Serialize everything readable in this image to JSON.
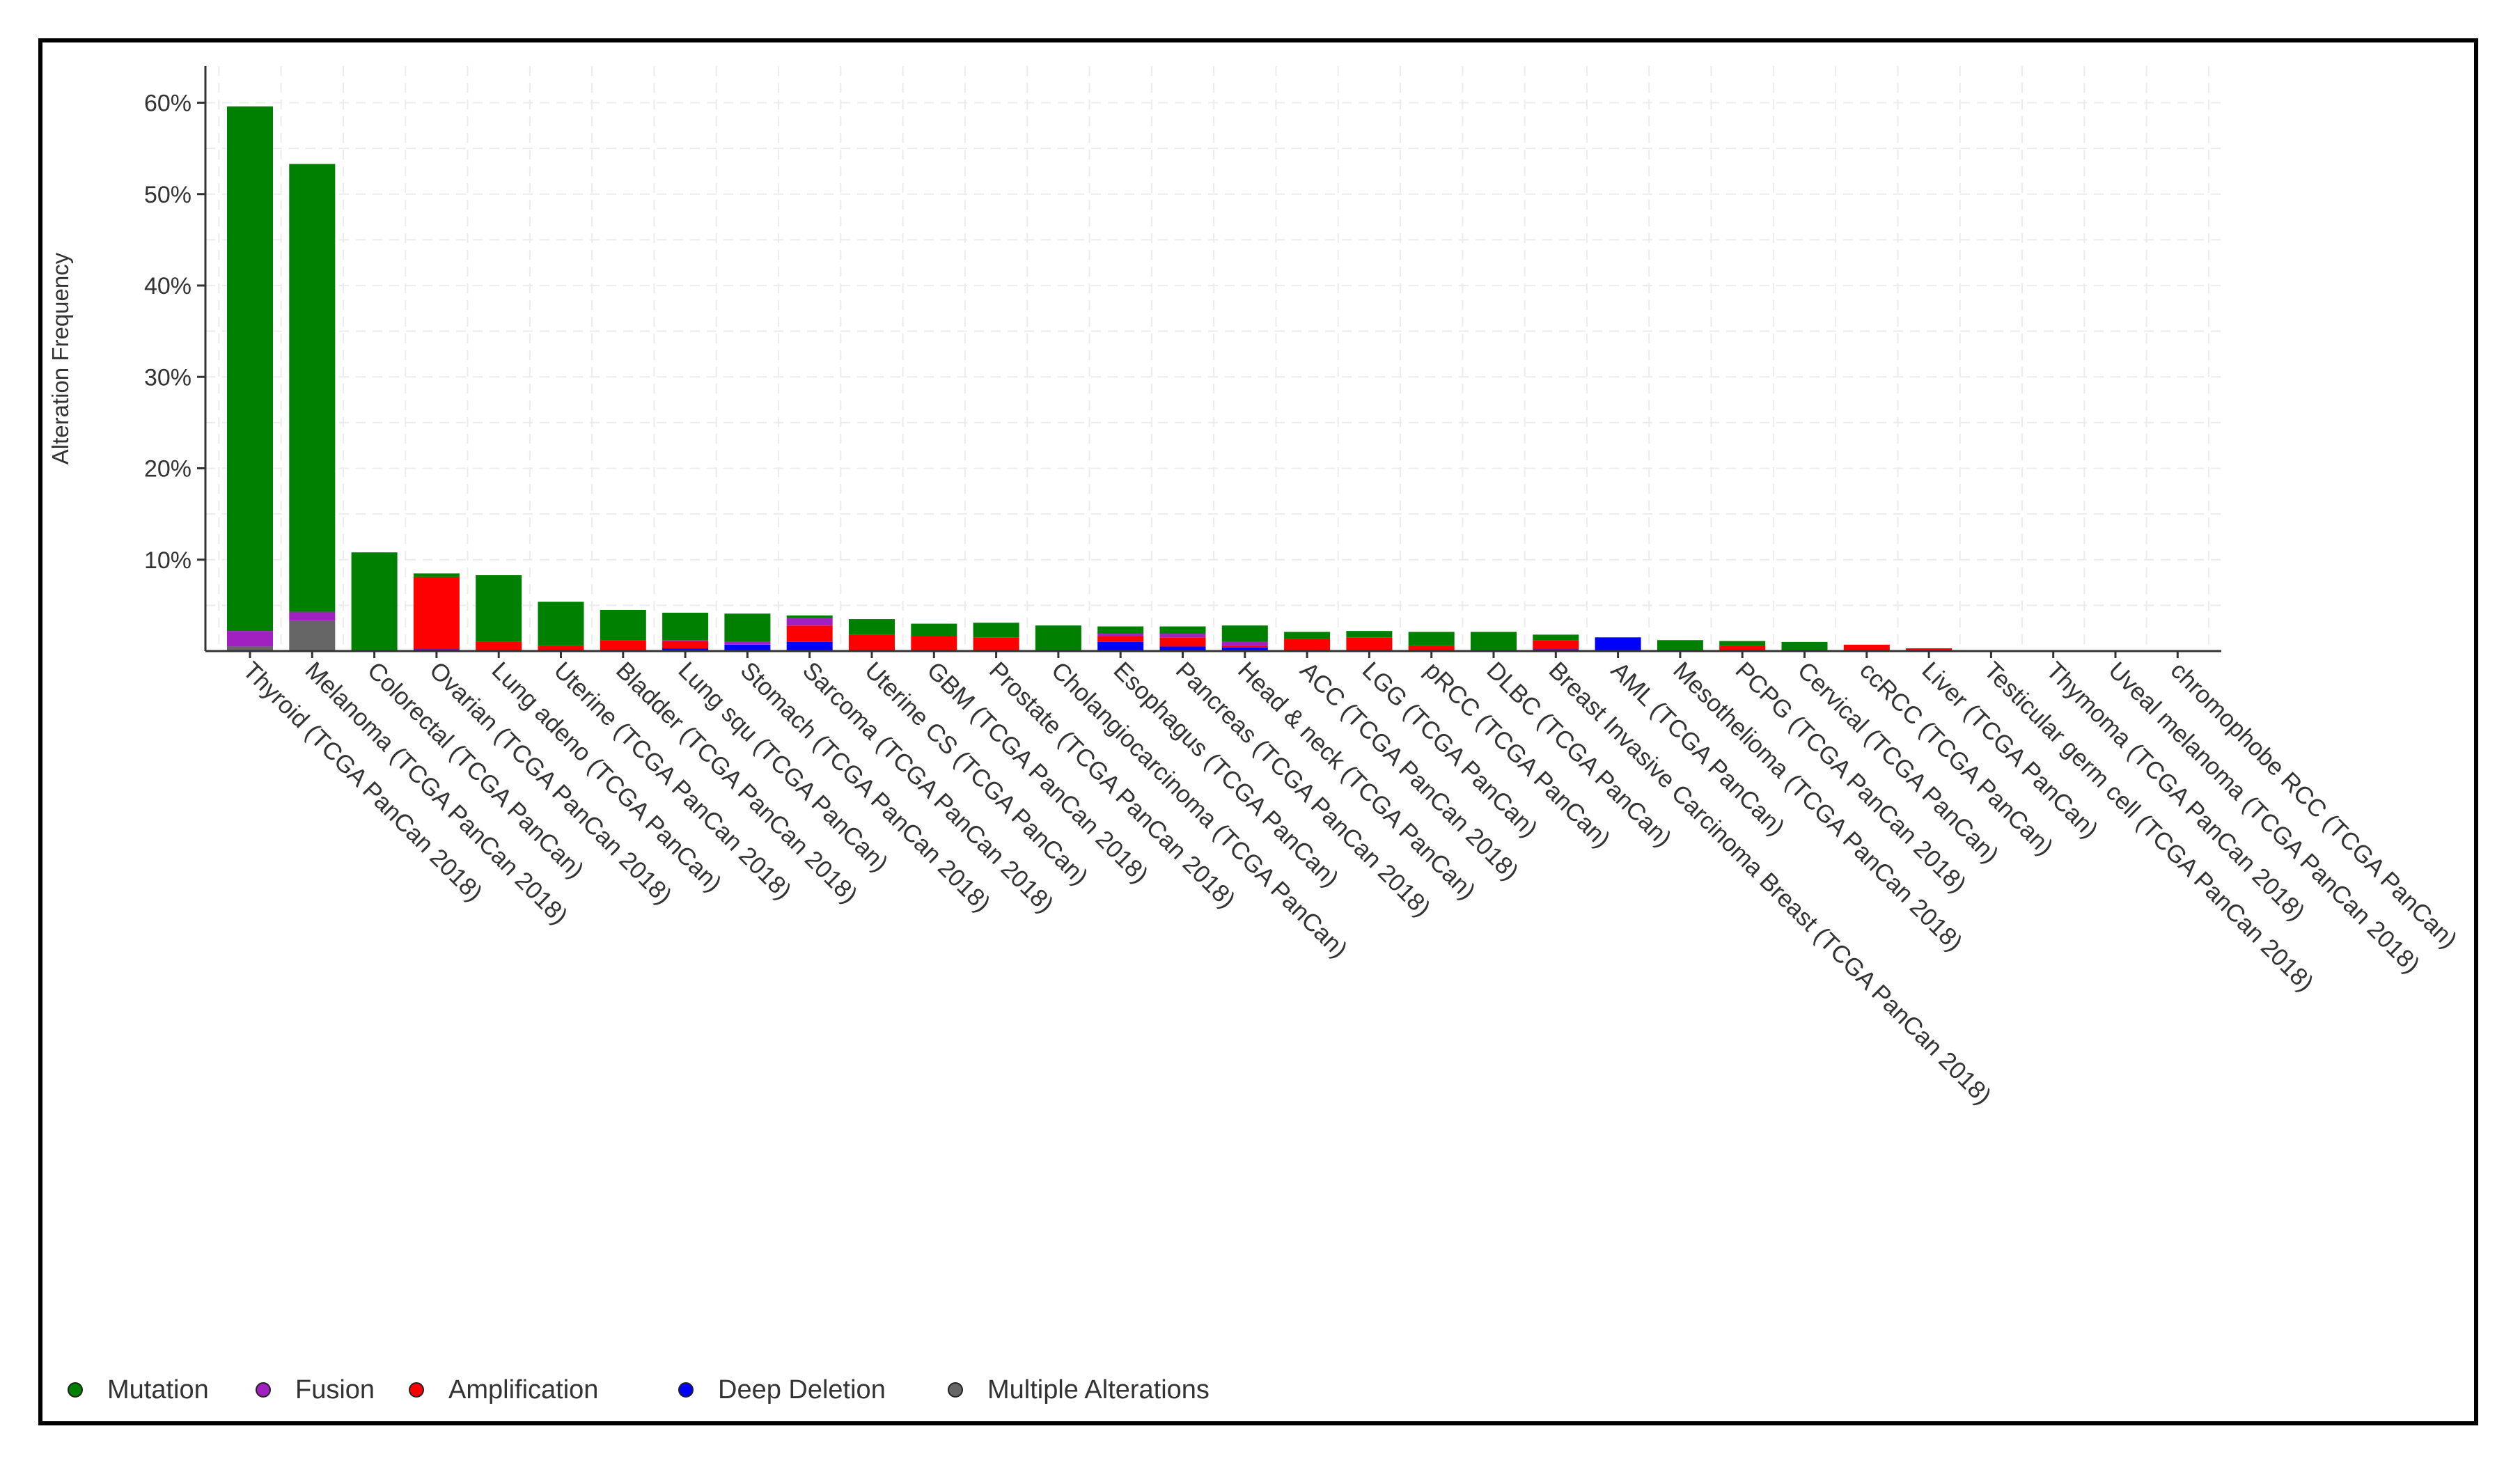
{
  "chart_data": {
    "type": "bar",
    "stacked": true,
    "ylabel": "Alteration Frequency",
    "ylim": [
      0,
      64
    ],
    "yticks": [
      10,
      20,
      30,
      40,
      50,
      60
    ],
    "ytick_format": "%",
    "grid": true,
    "legend_position": "bottom-left",
    "categories": [
      "Thyroid (TCGA PanCan 2018)",
      "Melanoma (TCGA PanCan 2018)",
      "Colorectal (TCGA PanCan)",
      "Ovarian (TCGA PanCan 2018)",
      "Lung adeno (TCGA PanCan)",
      "Uterine (TCGA PanCan 2018)",
      "Bladder (TCGA PanCan 2018)",
      "Lung squ (TCGA PanCan)",
      "Stomach (TCGA PanCan 2018)",
      "Sarcoma (TCGA PanCan 2018)",
      "Uterine CS (TCGA PanCan)",
      "GBM (TCGA PanCan 2018)",
      "Prostate (TCGA PanCan 2018)",
      "Cholangiocarcinoma (TCGA PanCan)",
      "Esophagus (TCGA PanCan)",
      "Pancreas (TCGA PanCan 2018)",
      "Head & neck (TCGA PanCan)",
      "ACC (TCGA PanCan 2018)",
      "LGG (TCGA PanCan)",
      "pRCC (TCGA PanCan)",
      "DLBC (TCGA PanCan)",
      "Breast Invasive Carcinoma Breast (TCGA PanCan 2018)",
      "AML (TCGA PanCan)",
      "Mesothelioma (TCGA PanCan 2018)",
      "PCPG (TCGA PanCan 2018)",
      "Cervical (TCGA PanCan)",
      "ccRCC (TCGA PanCan)",
      "Liver (TCGA PanCan)",
      "Testicular germ cell (TCGA PanCan 2018)",
      "Thymoma (TCGA PanCan 2018)",
      "Uveal melanoma (TCGA PanCan 2018)",
      "chromophobe RCC (TCGA PanCan)"
    ],
    "series": [
      {
        "name": "Multiple Alterations",
        "color": "#666666",
        "values": [
          0.5,
          3.3,
          0,
          0,
          0,
          0,
          0,
          0,
          0,
          0,
          0,
          0,
          0,
          0,
          0,
          0,
          0,
          0,
          0,
          0,
          0,
          0,
          0,
          0,
          0,
          0,
          0,
          0,
          0,
          0,
          0,
          0
        ]
      },
      {
        "name": "Deep Deletion",
        "color": "#0000ff",
        "values": [
          0,
          0,
          0,
          0.2,
          0,
          0,
          0,
          0.3,
          0.7,
          1.0,
          0,
          0,
          0,
          0,
          1.0,
          0.5,
          0.4,
          0,
          0,
          0,
          0,
          0.2,
          1.5,
          0,
          0,
          0,
          0,
          0,
          0,
          0,
          0,
          0
        ]
      },
      {
        "name": "Amplification",
        "color": "#ff0000",
        "values": [
          0,
          0,
          0,
          7.9,
          1.0,
          0.6,
          1.2,
          0.8,
          0,
          1.8,
          1.8,
          1.6,
          1.5,
          0,
          0.6,
          1.0,
          0.2,
          1.3,
          1.5,
          0.6,
          0,
          1.0,
          0,
          0,
          0.6,
          0,
          0.7,
          0.3,
          0,
          0,
          0,
          0
        ]
      },
      {
        "name": "Fusion",
        "color": "#a020c0",
        "values": [
          1.7,
          1.0,
          0,
          0,
          0,
          0,
          0,
          0.1,
          0.3,
          0.8,
          0,
          0,
          0,
          0,
          0.3,
          0.4,
          0.4,
          0,
          0,
          0,
          0,
          0,
          0,
          0,
          0,
          0,
          0,
          0,
          0,
          0,
          0,
          0
        ]
      },
      {
        "name": "Mutation",
        "color": "#008000",
        "values": [
          57.4,
          49.0,
          10.8,
          0.4,
          7.3,
          4.8,
          3.3,
          3.0,
          3.1,
          0.3,
          1.7,
          1.4,
          1.6,
          2.8,
          0.8,
          0.8,
          1.8,
          0.8,
          0.7,
          1.5,
          2.1,
          0.6,
          0,
          1.2,
          0.5,
          1.0,
          0,
          0,
          0,
          0,
          0,
          0
        ]
      }
    ],
    "legend": [
      {
        "name": "Mutation",
        "color": "#008000"
      },
      {
        "name": "Fusion",
        "color": "#a020c0"
      },
      {
        "name": "Amplification",
        "color": "#ff0000"
      },
      {
        "name": "Deep Deletion",
        "color": "#0000ff"
      },
      {
        "name": "Multiple Alterations",
        "color": "#666666"
      }
    ]
  }
}
